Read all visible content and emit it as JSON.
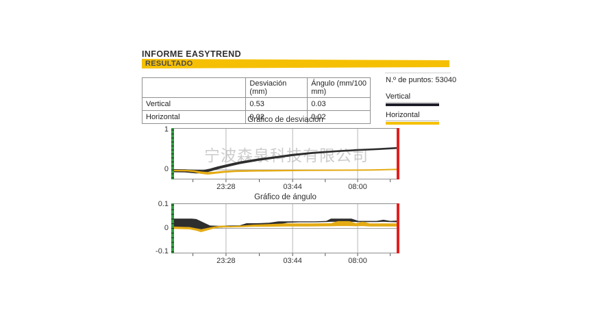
{
  "header": {
    "title": "INFORME EASYTREND",
    "banner": "RESULTADO",
    "banner_color": "#F5C003"
  },
  "results_table": {
    "headers": [
      "",
      "Desviación (mm)",
      "Ángulo (mm/100 mm)"
    ],
    "rows": [
      {
        "label": "Vertical",
        "desviacion": "0.53",
        "angulo": "0.03"
      },
      {
        "label": "Horizontal",
        "desviacion": "0.02",
        "angulo": "0.02"
      }
    ]
  },
  "info": {
    "points_label": "N.º de puntos: 53040"
  },
  "legend": {
    "items": [
      {
        "label": "Vertical",
        "color": "#1e1e2a"
      },
      {
        "label": "Horizontal",
        "color": "#F5C003"
      }
    ]
  },
  "watermark": {
    "text": "宁波森泉科技有限公司"
  },
  "colors": {
    "vertical_trace": "#2e2e2e",
    "horizontal_trace": "#e4ab14",
    "axis_start": "#2f9e3d",
    "axis_end": "#e31e1e",
    "gridline": "#b6b6b6"
  },
  "chart_data": [
    {
      "type": "area",
      "title": "Gráfico de desviación",
      "xlabel": "",
      "ylabel": "",
      "ylim": [
        -0.24,
        1.05
      ],
      "grid": true,
      "x_ticks": [
        {
          "f": 0.24,
          "label": "23:28"
        },
        {
          "f": 0.532,
          "label": "03:44"
        },
        {
          "f": 0.817,
          "label": "08:00"
        }
      ],
      "x_minor": [
        0.095,
        0.386,
        0.675,
        0.96
      ],
      "y_ticks": [
        {
          "v": 1,
          "label": "1"
        },
        {
          "v": 0,
          "label": "0"
        }
      ],
      "y_minor_step": 0.1,
      "zero_line": true,
      "axis_left_color": "#2f9e3d",
      "axis_right_color": "#e31e1e",
      "series": [
        {
          "name": "Vertical",
          "color": "#2e2e2e",
          "x": [
            0.0,
            0.06,
            0.11,
            0.14,
            0.17,
            0.2,
            0.24,
            0.3,
            0.38,
            0.46,
            0.53,
            0.62,
            0.72,
            0.82,
            0.91,
            1.0
          ],
          "upper": [
            0.02,
            0.015,
            0.0,
            -0.005,
            0.03,
            0.08,
            0.135,
            0.21,
            0.285,
            0.345,
            0.4,
            0.45,
            0.49,
            0.52,
            0.545,
            0.575
          ],
          "lower": [
            -0.06,
            -0.065,
            -0.09,
            -0.085,
            -0.04,
            0.01,
            0.065,
            0.145,
            0.225,
            0.29,
            0.345,
            0.4,
            0.445,
            0.475,
            0.5,
            0.53
          ]
        },
        {
          "name": "Horizontal",
          "color": "#e4ab14",
          "x": [
            0.0,
            0.07,
            0.1,
            0.13,
            0.16,
            0.19,
            0.23,
            0.28,
            0.35,
            0.45,
            0.6,
            0.75,
            0.88,
            1.0
          ],
          "upper": [
            0.005,
            0.0,
            -0.01,
            -0.04,
            -0.055,
            -0.045,
            -0.025,
            -0.01,
            -0.005,
            0.0,
            0.005,
            0.01,
            0.015,
            0.03
          ],
          "lower": [
            -0.035,
            -0.04,
            -0.06,
            -0.1,
            -0.12,
            -0.1,
            -0.075,
            -0.055,
            -0.045,
            -0.04,
            -0.03,
            -0.025,
            -0.02,
            -0.005
          ]
        }
      ]
    },
    {
      "type": "area",
      "title": "Gráfico de ángulo",
      "xlabel": "",
      "ylabel": "",
      "ylim": [
        -0.107,
        0.107
      ],
      "grid": true,
      "x_ticks": [
        {
          "f": 0.24,
          "label": "23:28"
        },
        {
          "f": 0.532,
          "label": "03:44"
        },
        {
          "f": 0.817,
          "label": "08:00"
        }
      ],
      "x_minor": [
        0.095,
        0.386,
        0.675,
        0.96
      ],
      "y_ticks": [
        {
          "v": 0.1,
          "label": "0.1"
        },
        {
          "v": 0,
          "label": "0"
        },
        {
          "v": -0.1,
          "label": "-0.1"
        }
      ],
      "y_minor_step": 0.02,
      "zero_line": true,
      "axis_left_color": "#2f9e3d",
      "axis_right_color": "#e31e1e",
      "series": [
        {
          "name": "Vertical",
          "color": "#2e2e2e",
          "x": [
            0.0,
            0.01,
            0.09,
            0.11,
            0.14,
            0.17,
            0.21,
            0.25,
            0.3,
            0.33,
            0.37,
            0.43,
            0.47,
            0.51,
            0.56,
            0.63,
            0.68,
            0.7,
            0.79,
            0.82,
            0.9,
            0.93,
            0.96,
            1.0
          ],
          "upper": [
            0.042,
            0.042,
            0.042,
            0.04,
            0.026,
            0.012,
            0.011,
            0.012,
            0.013,
            0.022,
            0.022,
            0.024,
            0.03,
            0.03,
            0.03,
            0.03,
            0.032,
            0.042,
            0.042,
            0.032,
            0.032,
            0.037,
            0.032,
            0.034
          ],
          "lower": [
            -0.01,
            0.002,
            0.002,
            0.0,
            -0.006,
            0.0,
            0.003,
            0.006,
            0.008,
            0.009,
            0.014,
            0.016,
            0.017,
            0.024,
            0.026,
            0.026,
            0.027,
            0.028,
            0.028,
            0.027,
            0.027,
            0.028,
            0.027,
            0.026
          ]
        },
        {
          "name": "Horizontal",
          "color": "#e4ab14",
          "x": [
            0.0,
            0.08,
            0.11,
            0.13,
            0.16,
            0.19,
            0.22,
            0.26,
            0.31,
            0.36,
            0.42,
            0.5,
            0.6,
            0.7,
            0.73,
            0.78,
            0.81,
            0.84,
            0.87,
            1.0
          ],
          "upper": [
            0.008,
            0.006,
            0.0,
            -0.004,
            0.002,
            0.008,
            0.012,
            0.01,
            0.012,
            0.016,
            0.018,
            0.021,
            0.021,
            0.022,
            0.031,
            0.031,
            0.022,
            0.029,
            0.021,
            0.021
          ],
          "lower": [
            -0.002,
            -0.004,
            -0.01,
            -0.016,
            -0.008,
            0.0,
            0.004,
            0.004,
            0.005,
            0.007,
            0.007,
            0.008,
            0.008,
            0.009,
            0.01,
            0.01,
            0.009,
            0.01,
            0.008,
            0.008
          ]
        }
      ]
    }
  ]
}
